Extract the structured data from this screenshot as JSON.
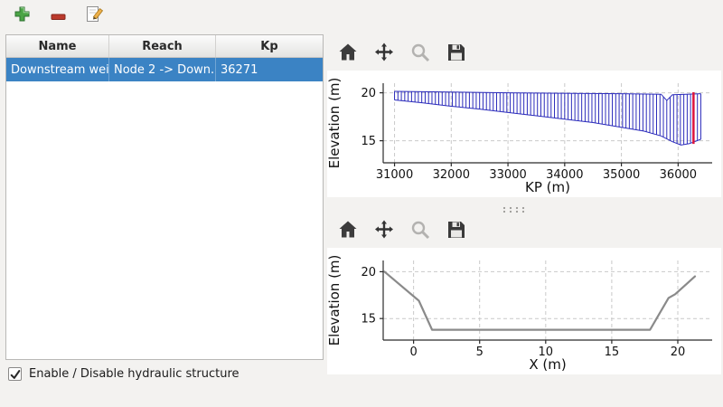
{
  "app_toolbar": {
    "buttons": [
      {
        "id": "add",
        "tooltip_semantic": "add structure"
      },
      {
        "id": "remove",
        "tooltip_semantic": "remove structure"
      },
      {
        "id": "edit",
        "tooltip_semantic": "edit structure"
      }
    ]
  },
  "structure_table": {
    "headers": [
      "Name",
      "Reach",
      "Kp"
    ],
    "rows": [
      {
        "name": "Downstream weir",
        "reach": "Node 2 -> Down...",
        "kp": "36271"
      }
    ],
    "selection_color": "#3b83c4"
  },
  "footer": {
    "checkbox_label": "Enable / Disable hydraulic structure",
    "checked": true
  },
  "plot_toolbars": {
    "icons": [
      "home",
      "pan",
      "zoom",
      "save"
    ]
  },
  "colors": {
    "hatch_blue": "#2b2bbb",
    "marker_red": "#dc143c",
    "cross_section_gray": "#8a8a8a",
    "selection_blue": "#3b83c4"
  },
  "chart_data": [
    {
      "type": "area",
      "subtype": "hatched-longitudinal-profile",
      "title": "",
      "xlabel": "KP (m)",
      "ylabel": "Elevation (m)",
      "xlim": [
        30800,
        36600
      ],
      "ylim": [
        12.7,
        21.0
      ],
      "xticks": [
        31000,
        32000,
        33000,
        34000,
        35000,
        36000
      ],
      "yticks": [
        15,
        20
      ],
      "grid": true,
      "hatch_color": "#2b2bbb",
      "hatch_step": 60,
      "hatch_range": [
        31000,
        36400
      ],
      "top_line": [
        [
          31000,
          20.15
        ],
        [
          33000,
          20.0
        ],
        [
          35000,
          19.9
        ],
        [
          35700,
          19.85
        ],
        [
          35800,
          19.2
        ],
        [
          35900,
          19.8
        ],
        [
          36400,
          19.9
        ]
      ],
      "bottom_line": [
        [
          31000,
          19.25
        ],
        [
          31500,
          18.95
        ],
        [
          32000,
          18.6
        ],
        [
          32500,
          18.3
        ],
        [
          33000,
          17.95
        ],
        [
          33500,
          17.6
        ],
        [
          34000,
          17.25
        ],
        [
          34500,
          16.9
        ],
        [
          35000,
          16.4
        ],
        [
          35400,
          16.0
        ],
        [
          35700,
          15.5
        ],
        [
          35900,
          14.9
        ],
        [
          36050,
          14.55
        ],
        [
          36200,
          14.7
        ],
        [
          36400,
          15.15
        ]
      ],
      "marker_x": 36271,
      "marker_color": "#dc143c"
    },
    {
      "type": "line",
      "subtype": "cross-section",
      "title": "",
      "xlabel": "X (m)",
      "ylabel": "Elevation (m)",
      "xlim": [
        -2.3,
        22.6
      ],
      "ylim": [
        12.7,
        21.2
      ],
      "xticks": [
        0,
        5,
        10,
        15,
        20
      ],
      "yticks": [
        15,
        20
      ],
      "grid": true,
      "line_color": "#8a8a8a",
      "points": [
        [
          -2.2,
          20.0
        ],
        [
          0.4,
          16.9
        ],
        [
          1.4,
          13.8
        ],
        [
          17.9,
          13.8
        ],
        [
          19.3,
          17.2
        ],
        [
          19.8,
          17.6
        ],
        [
          21.3,
          19.5
        ]
      ]
    }
  ]
}
